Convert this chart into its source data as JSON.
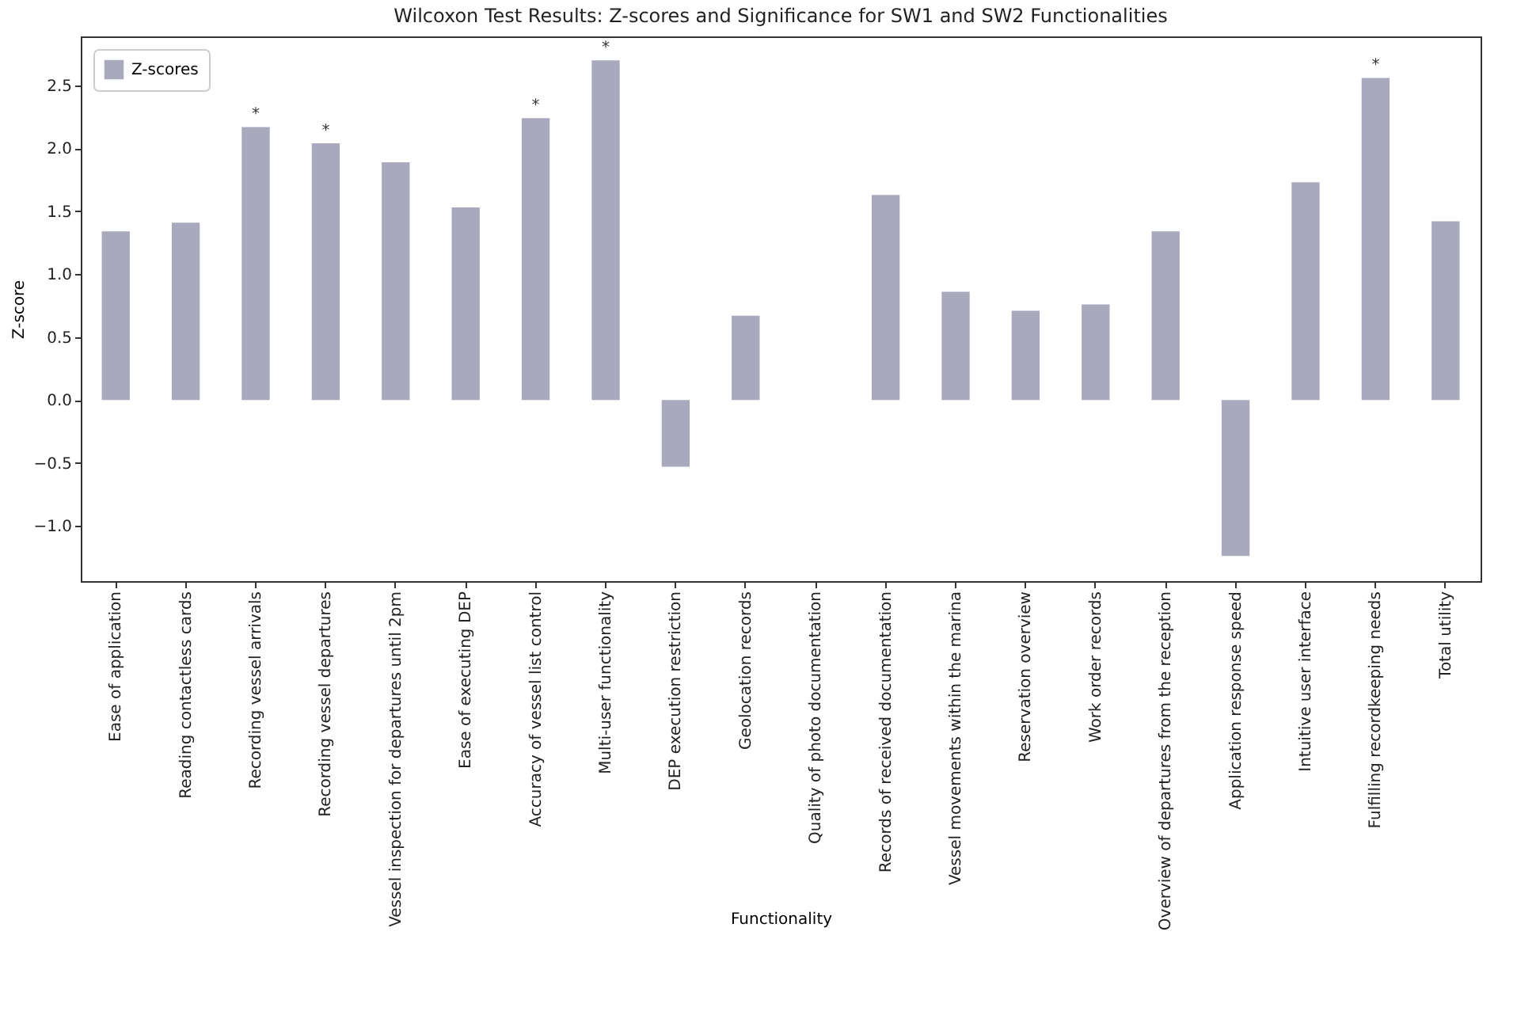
{
  "chart_data": {
    "type": "bar",
    "title": "Wilcoxon Test Results: Z-scores and Significance for SW1 and SW2 Functionalities",
    "xlabel": "Functionality",
    "ylabel": "Z-score",
    "categories": [
      "Ease of application",
      "Reading contactless cards",
      "Recording vessel arrivals",
      "Recording vessel departures",
      "Vessel inspection for departures until 2pm",
      "Ease of executing DEP",
      "Accuracy of vessel list control",
      "Multi-user functionality",
      "DEP execution restriction",
      "Geolocation records",
      "Quality of photo documentation",
      "Records of received documentation",
      "Vessel movements within the marina",
      "Reservation overview",
      "Work order records",
      "Overview of departures from the reception",
      "Application response speed",
      "Intuitive user interface",
      "Fulfilling recordkeeping needs",
      "Total utility"
    ],
    "series": [
      {
        "name": "Z-scores",
        "color": "#a9a9bd",
        "values": [
          1.34,
          1.41,
          2.17,
          2.04,
          1.89,
          1.53,
          2.24,
          2.7,
          -0.53,
          0.67,
          0,
          1.63,
          0.86,
          0.71,
          0.76,
          1.34,
          -1.24,
          1.73,
          2.56,
          1.42
        ]
      }
    ],
    "ylim": [
      -1.44,
      2.89
    ],
    "yticks": [
      {
        "value": -1,
        "label": "−1.0"
      },
      {
        "value": -0.5,
        "label": "−0.5"
      },
      {
        "value": 0,
        "label": "0.0"
      },
      {
        "value": 0.5,
        "label": "0.5"
      },
      {
        "value": 1,
        "label": "1.0"
      },
      {
        "value": 1.5,
        "label": "1.5"
      },
      {
        "value": 2,
        "label": "2.0"
      },
      {
        "value": 2.5,
        "label": "2.5"
      }
    ],
    "grid": false,
    "legend": "top left",
    "annotations": [
      {
        "text": "*",
        "x": "Recording vessel arrivals",
        "y": 2.17
      },
      {
        "text": "*",
        "x": "Recording vessel departures",
        "y": 2.04
      },
      {
        "text": "*",
        "x": "Accuracy of vessel list control",
        "y": 2.24
      },
      {
        "text": "*",
        "x": "Multi-user functionality",
        "y": 2.7
      },
      {
        "text": "*",
        "x": "Fulfilling recordkeeping needs",
        "y": 2.56
      }
    ]
  }
}
